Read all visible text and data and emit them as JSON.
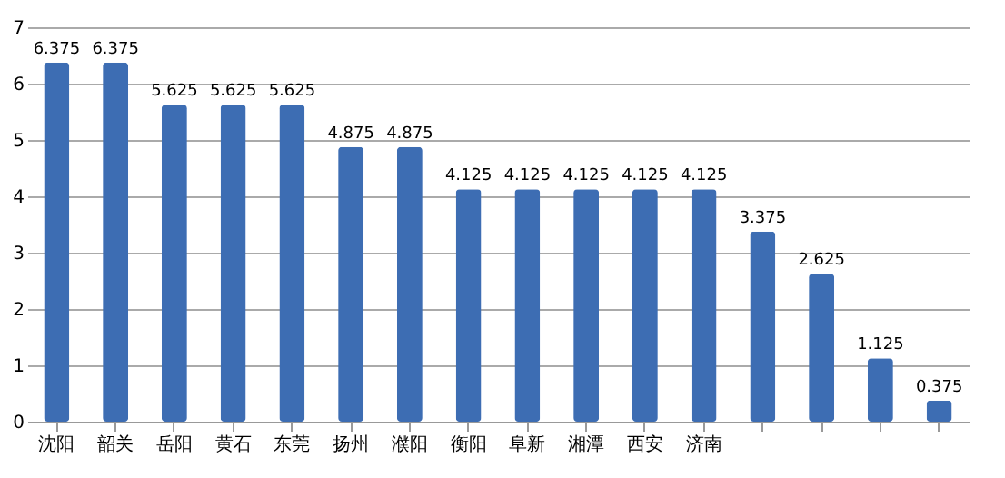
{
  "chart_data": {
    "type": "bar",
    "categories": [
      "沈阳",
      "韶关",
      "岳阳",
      "黄石",
      "东莞",
      "扬州",
      "濮阳",
      "衡阳",
      "阜新",
      "湘潭",
      "西安",
      "济南",
      null,
      null,
      null,
      null
    ],
    "values": [
      6.375,
      6.375,
      5.625,
      5.625,
      5.625,
      4.875,
      4.875,
      4.125,
      4.125,
      4.125,
      4.125,
      4.125,
      3.375,
      2.625,
      1.125,
      0.375
    ],
    "color": "#3d6db3",
    "ylim": [
      0,
      7
    ],
    "yticks": [
      0,
      1,
      2,
      3,
      4,
      5,
      6,
      7
    ],
    "grid": "y",
    "data_labels": true
  }
}
